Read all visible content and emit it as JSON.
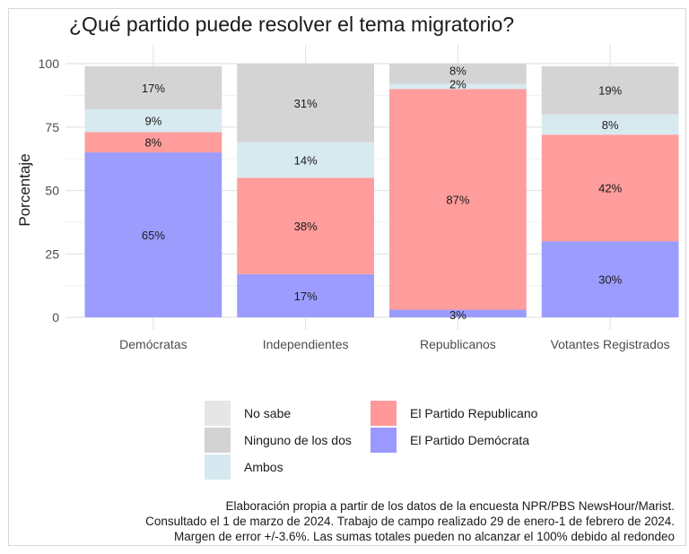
{
  "chart_data": {
    "type": "bar",
    "stacked": true,
    "title": "¿Qué partido puede resolver el tema migratorio?",
    "xlabel": "",
    "ylabel": "Porcentaje",
    "ylim": [
      0,
      100
    ],
    "yticks": [
      0,
      25,
      50,
      75,
      100
    ],
    "grid": true,
    "categories": [
      "Demócratas",
      "Independientes",
      "Republicanos",
      "Votantes Registrados"
    ],
    "series": [
      {
        "name": "El Partido Demócrata",
        "color": "#9999ff",
        "values": [
          65,
          17,
          3,
          30
        ],
        "labels": [
          "65%",
          "17%",
          "3%",
          "30%"
        ]
      },
      {
        "name": "El Partido Republicano",
        "color": "#ff9999",
        "values": [
          8,
          38,
          87,
          42
        ],
        "labels": [
          "8%",
          "38%",
          "87%",
          "42%"
        ]
      },
      {
        "name": "Ambos",
        "color": "#d6e9f0",
        "values": [
          9,
          14,
          2,
          8
        ],
        "labels": [
          "9%",
          "14%",
          "2%",
          "8%"
        ]
      },
      {
        "name": "Ninguno de los dos",
        "color": "#d3d3d3",
        "values": [
          17,
          31,
          8,
          19
        ],
        "labels": [
          "17%",
          "31%",
          "8%",
          "19%"
        ]
      },
      {
        "name": "No sabe",
        "color": "#e6e6e6",
        "values": [
          0,
          0,
          0,
          0
        ],
        "labels": [
          "",
          "",
          "",
          ""
        ]
      }
    ],
    "legend": {
      "placement": "bottom",
      "entries": [
        {
          "name": "No sabe",
          "color": "#e6e6e6"
        },
        {
          "name": "Ninguno de los dos",
          "color": "#d3d3d3"
        },
        {
          "name": "Ambos",
          "color": "#d6e9f0"
        },
        {
          "name": "El Partido Republicano",
          "color": "#ff9999"
        },
        {
          "name": "El Partido Demócrata",
          "color": "#9999ff"
        }
      ]
    },
    "caption": [
      "Elaboración propia a partir de los datos de la encuesta NPR/PBS NewsHour/Marist.",
      "Consultado el 1 de marzo de 2024. Trabajo de campo realizado 29 de enero-1 de febrero de 2024.",
      "Margen de error +/-3.6%. Las sumas totales pueden no alcanzar el 100% debido al redondeo"
    ]
  }
}
